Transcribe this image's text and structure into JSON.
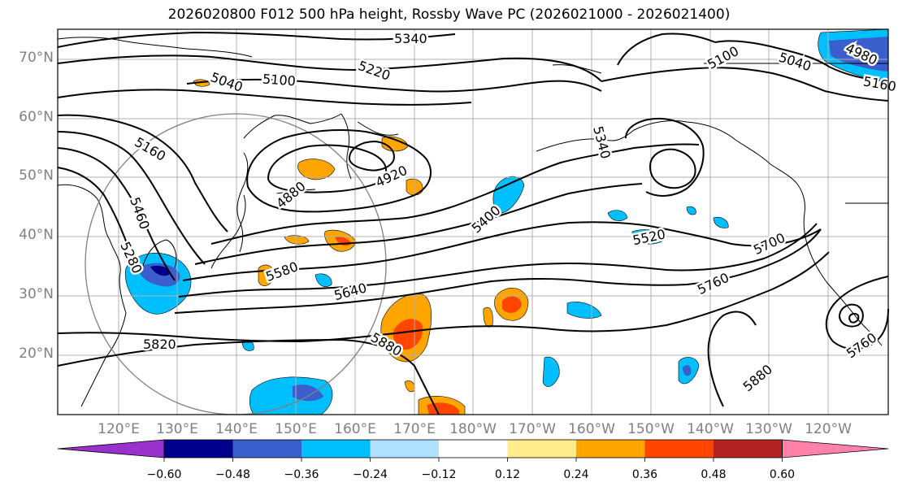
{
  "title": "2026020800 F012 500 hPa height, Rossby Wave PC (2026021000 - 2026021400)",
  "lat_labels": [
    "70°N",
    "60°N",
    "50°N",
    "40°N",
    "30°N",
    "20°N"
  ],
  "lon_labels": [
    "120°E",
    "130°E",
    "140°E",
    "150°E",
    "160°E",
    "170°E",
    "180°W",
    "170°W",
    "160°W",
    "150°W",
    "140°W",
    "130°W",
    "120°W"
  ],
  "contour_labels": [
    "5340",
    "5220",
    "5100",
    "5040",
    "4980",
    "5100",
    "5040",
    "5160",
    "4880",
    "4920",
    "5340",
    "5460",
    "5400",
    "5520",
    "5700",
    "5760",
    "5580",
    "5640",
    "5820",
    "5880",
    "5880",
    "5760",
    "5160",
    "5280"
  ],
  "colorbar": {
    "ticks": [
      "−0.60",
      "−0.48",
      "−0.36",
      "−0.24",
      "−0.12",
      "0.12",
      "0.24",
      "0.36",
      "0.48",
      "0.60"
    ],
    "colors": [
      "#9932cc",
      "#00008b",
      "#3a5fcd",
      "#00bfff",
      "#b0e2ff",
      "#ffffff",
      "#ffec8b",
      "#ffa500",
      "#ff4500",
      "#b22222",
      "#ff82ab"
    ]
  },
  "colors": {
    "contour": "#000000",
    "grid": "#b0b0b0",
    "coast": "#000000",
    "circle": "#808080",
    "label_gray": "#808080"
  }
}
